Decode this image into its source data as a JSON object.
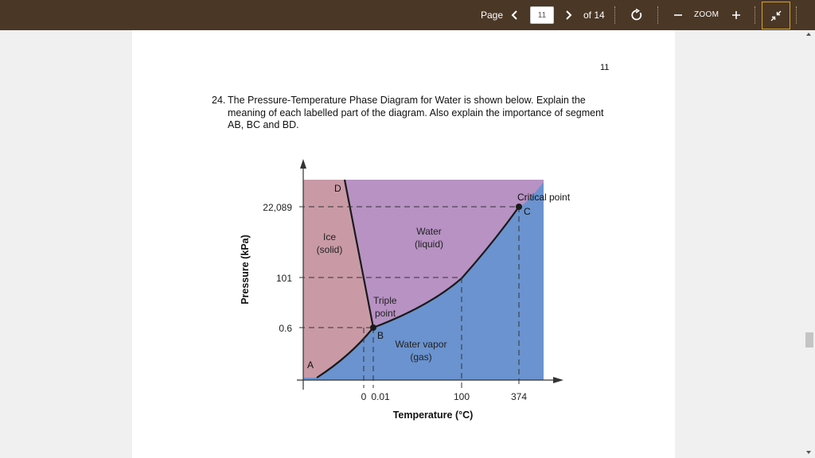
{
  "toolbar": {
    "page_label": "Page",
    "current_page": "11",
    "of_total": "of 14",
    "zoom_label": "ZOOM",
    "bg_color": "#4a3726",
    "active_border_color": "#d9a520"
  },
  "icons": {
    "prev": "chevron-left-icon",
    "next": "chevron-right-icon",
    "rotate": "rotate-icon",
    "zoom_out": "minus-icon",
    "zoom_in": "plus-icon",
    "exit_fullscreen": "collapse-icon"
  },
  "document": {
    "page_number": "11",
    "question_number": "24.",
    "question_text": "The Pressure-Temperature Phase Diagram for Water is shown below.  Explain the meaning of each labelled part of the diagram.  Also explain the importance of segment AB, BC and BD."
  },
  "diagram": {
    "colors": {
      "solid": "#c99aa6",
      "liquid": "#b792c3",
      "gas": "#6a93cf"
    },
    "y_axis_label": "Pressure (kPa)",
    "x_axis_label": "Temperature (°C)",
    "y_ticks": [
      "22,089",
      "101",
      "0.6"
    ],
    "x_ticks": [
      "0",
      "0.01",
      "100",
      "374"
    ],
    "regions": {
      "solid_line1": "Ice",
      "solid_line2": "(solid)",
      "liquid_line1": "Water",
      "liquid_line2": "(liquid)",
      "gas_line1": "Water vapor",
      "gas_line2": "(gas)"
    },
    "points": {
      "A": "A",
      "B": "B",
      "C": "C",
      "D": "D",
      "triple_line1": "Triple",
      "triple_line2": "point",
      "critical": "Critical point"
    }
  }
}
